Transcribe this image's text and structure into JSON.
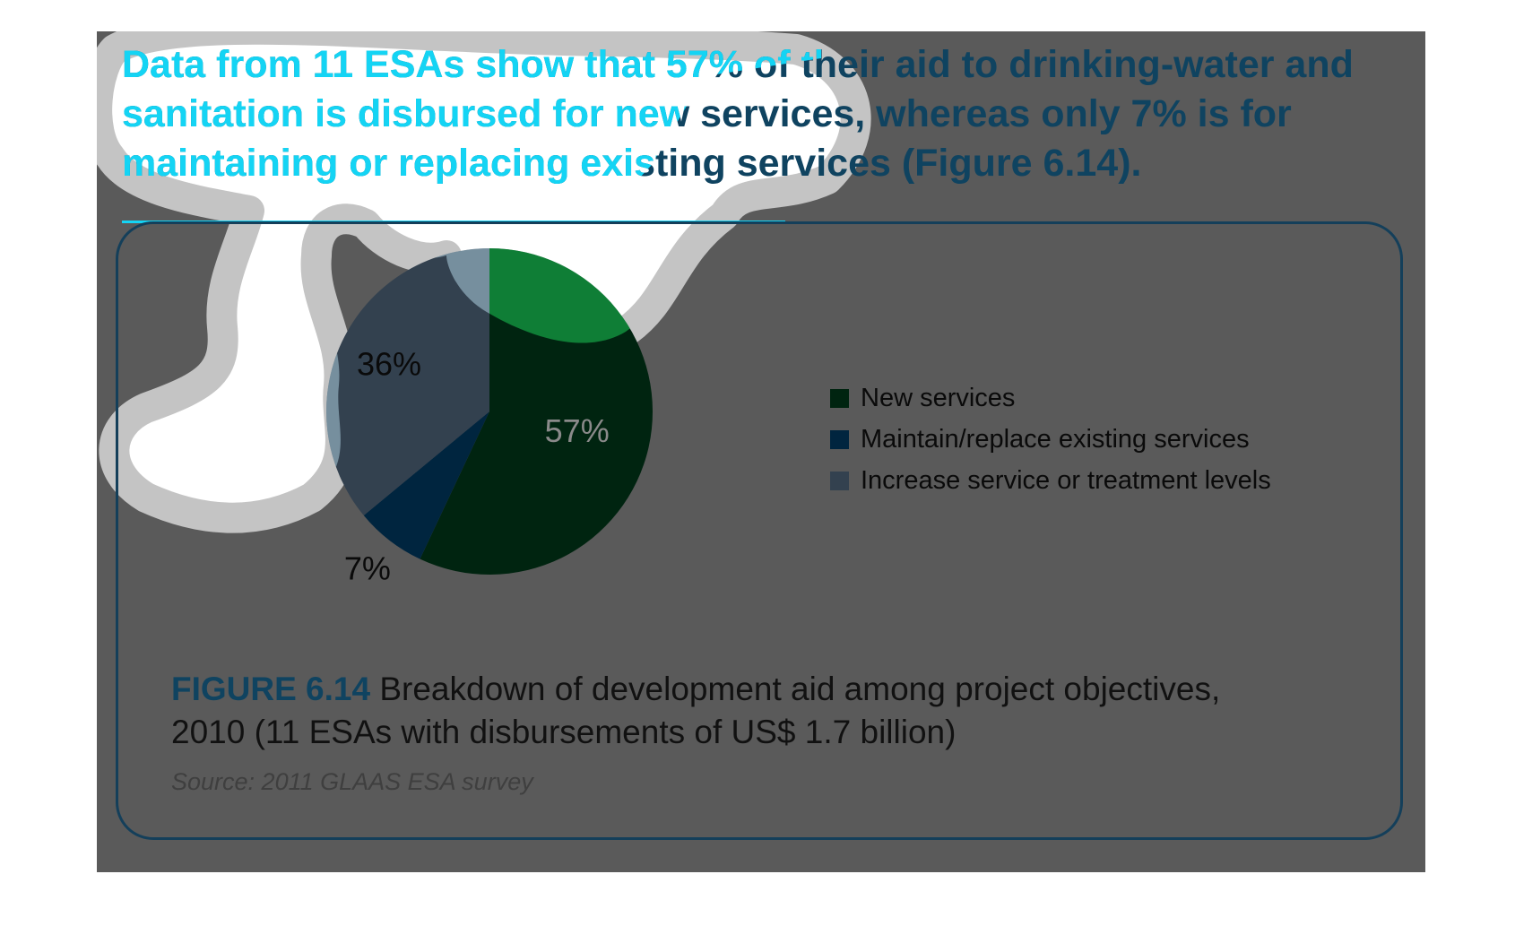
{
  "headline": "Data from 11 ESAs show that 57% of their aid to drinking-water and sanitation is disbursed for new services, whereas only 7% is for maintaining or replacing existing services (Figure 6.14).",
  "figure": {
    "label": "FIGURE 6.14",
    "caption": "Breakdown of development aid among project objectives, 2010 (11 ESAs with disbursements of US$ 1.7 billion)",
    "source": "Source: 2011 GLAAS ESA survey"
  },
  "chart_data": {
    "type": "pie",
    "title": "",
    "slices": [
      {
        "name": "New services",
        "value": 57,
        "label": "57%",
        "color": "#002410"
      },
      {
        "name": "Maintain/replace existing services",
        "value": 7,
        "label": "7%",
        "color": "#00253f"
      },
      {
        "name": "Increase service or treatment levels",
        "value": 36,
        "label": "36%",
        "color": "#33414f"
      }
    ],
    "legend": {
      "position": "right",
      "entries": [
        "New services",
        "Maintain/replace existing services",
        "Increase service or treatment levels"
      ]
    }
  },
  "colors": {
    "panel_background": "#5a5a5a",
    "highlight_overlay": "#ffffff",
    "highlight_text": "#14d4f4",
    "headline_text": "#0f4360",
    "frame_border": "#143f5a"
  }
}
